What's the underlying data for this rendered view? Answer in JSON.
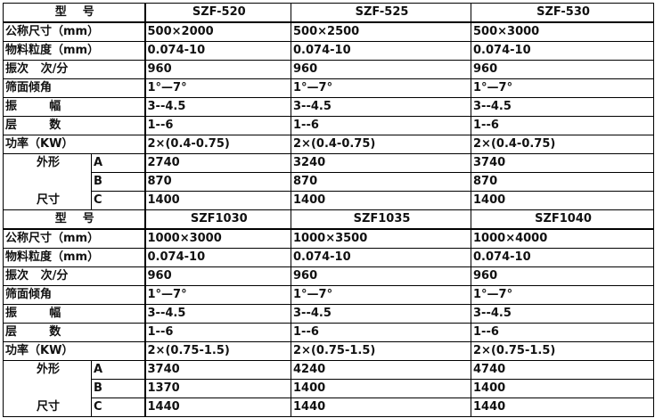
{
  "sections": [
    {
      "header_label": "型    号",
      "models": [
        "SZF-520",
        "SZF-525",
        "SZF-530"
      ],
      "rows": [
        {
          "label": "公称尺寸（mm）",
          "values": [
            "500×2000",
            "500×2500",
            "500×3000"
          ]
        },
        {
          "label": "物料粒度（mm）",
          "values": [
            "0.074-10",
            "0.074-10",
            "0.074-10"
          ]
        },
        {
          "label": "振次   次/分",
          "values": [
            "960",
            "960",
            "960"
          ]
        },
        {
          "label": "筛面倾角",
          "values": [
            "1°—7°",
            "1°—7°",
            "1°—7°"
          ]
        },
        {
          "label": "振        幅",
          "values": [
            "3--4.5",
            "3--4.5",
            "3--4.5"
          ]
        },
        {
          "label": "层        数",
          "values": [
            "1--6",
            "1--6",
            "1--6"
          ]
        },
        {
          "label": "功率（KW）",
          "values": [
            "2×(0.4-0.75)",
            "2×(0.4-0.75)",
            "2×(0.4-0.75)"
          ]
        }
      ],
      "dimension_label_top": "外形",
      "dimension_label_bottom": "尺寸",
      "dimensions": [
        {
          "key": "A",
          "values": [
            "2740",
            "3240",
            "3740"
          ]
        },
        {
          "key": "B",
          "values": [
            "870",
            "870",
            "870"
          ]
        },
        {
          "key": "C",
          "values": [
            "1400",
            "1400",
            "1400"
          ]
        }
      ]
    },
    {
      "header_label": "型    号",
      "models": [
        "SZF1030",
        "SZF1035",
        "SZF1040"
      ],
      "rows": [
        {
          "label": "公称尺寸（mm）",
          "values": [
            "1000×3000",
            "1000×3500",
            "1000×4000"
          ]
        },
        {
          "label": "物料粒度（mm）",
          "values": [
            "0.074-10",
            "0.074-10",
            "0.074-10"
          ]
        },
        {
          "label": "振次   次/分",
          "values": [
            "960",
            "960",
            "960"
          ]
        },
        {
          "label": "筛面倾角",
          "values": [
            "1°—7°",
            "1°—7°",
            "1°—7°"
          ]
        },
        {
          "label": "振        幅",
          "values": [
            "3--4.5",
            "3--4.5",
            "3--4.5"
          ]
        },
        {
          "label": "层        数",
          "values": [
            "1--6",
            "1--6",
            "1--6"
          ]
        },
        {
          "label": "功率（KW）",
          "values": [
            "2×(0.75-1.5)",
            "2×(0.75-1.5)",
            "2×(0.75-1.5)"
          ]
        }
      ],
      "dimension_label_top": "外形",
      "dimension_label_bottom": "尺寸",
      "dimensions": [
        {
          "key": "A",
          "values": [
            "3740",
            "4240",
            "4740"
          ]
        },
        {
          "key": "B",
          "values": [
            "1370",
            "1400",
            "1400"
          ]
        },
        {
          "key": "C",
          "values": [
            "1440",
            "1440",
            "1440"
          ]
        }
      ]
    }
  ]
}
